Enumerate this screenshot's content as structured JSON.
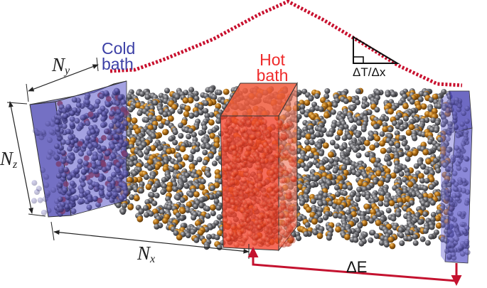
{
  "figure": {
    "type": "schematic",
    "subject": "Non-equilibrium molecular dynamics setup: hot bath in the middle, cold baths at both ends"
  },
  "labels": {
    "cold_bath_line1": "Cold",
    "cold_bath_line2": "bath",
    "hot_bath_line1": "Hot",
    "hot_bath_line2": "bath",
    "gradient": "ΔT/Δx",
    "energy": "ΔE",
    "dim_y_main": "N",
    "dim_y_sub": "y",
    "dim_z_main": "N",
    "dim_z_sub": "z",
    "dim_x_main": "N",
    "dim_x_sub": "x"
  },
  "colors": {
    "cold_bath": "#5a55c8",
    "hot_bath": "#f2412a",
    "temperature_profile": "#c8102e",
    "energy_arrow": "#c4122f",
    "atom_gray": "#5e5e62",
    "atom_orange": "#b8741a",
    "dimension_lines": "#222222"
  },
  "elements": {
    "temperature_profile": "dotted red line: rises from cold bath to peak above hot bath, then falls to right cold bath",
    "energy_arrow": "red bracket arrow from right cold bath to hot bath bottom",
    "slope_triangle": "right-triangle glyph indicating gradient"
  },
  "atoms": {
    "species": [
      "gray",
      "orange"
    ],
    "orange_fraction": 0.22
  }
}
